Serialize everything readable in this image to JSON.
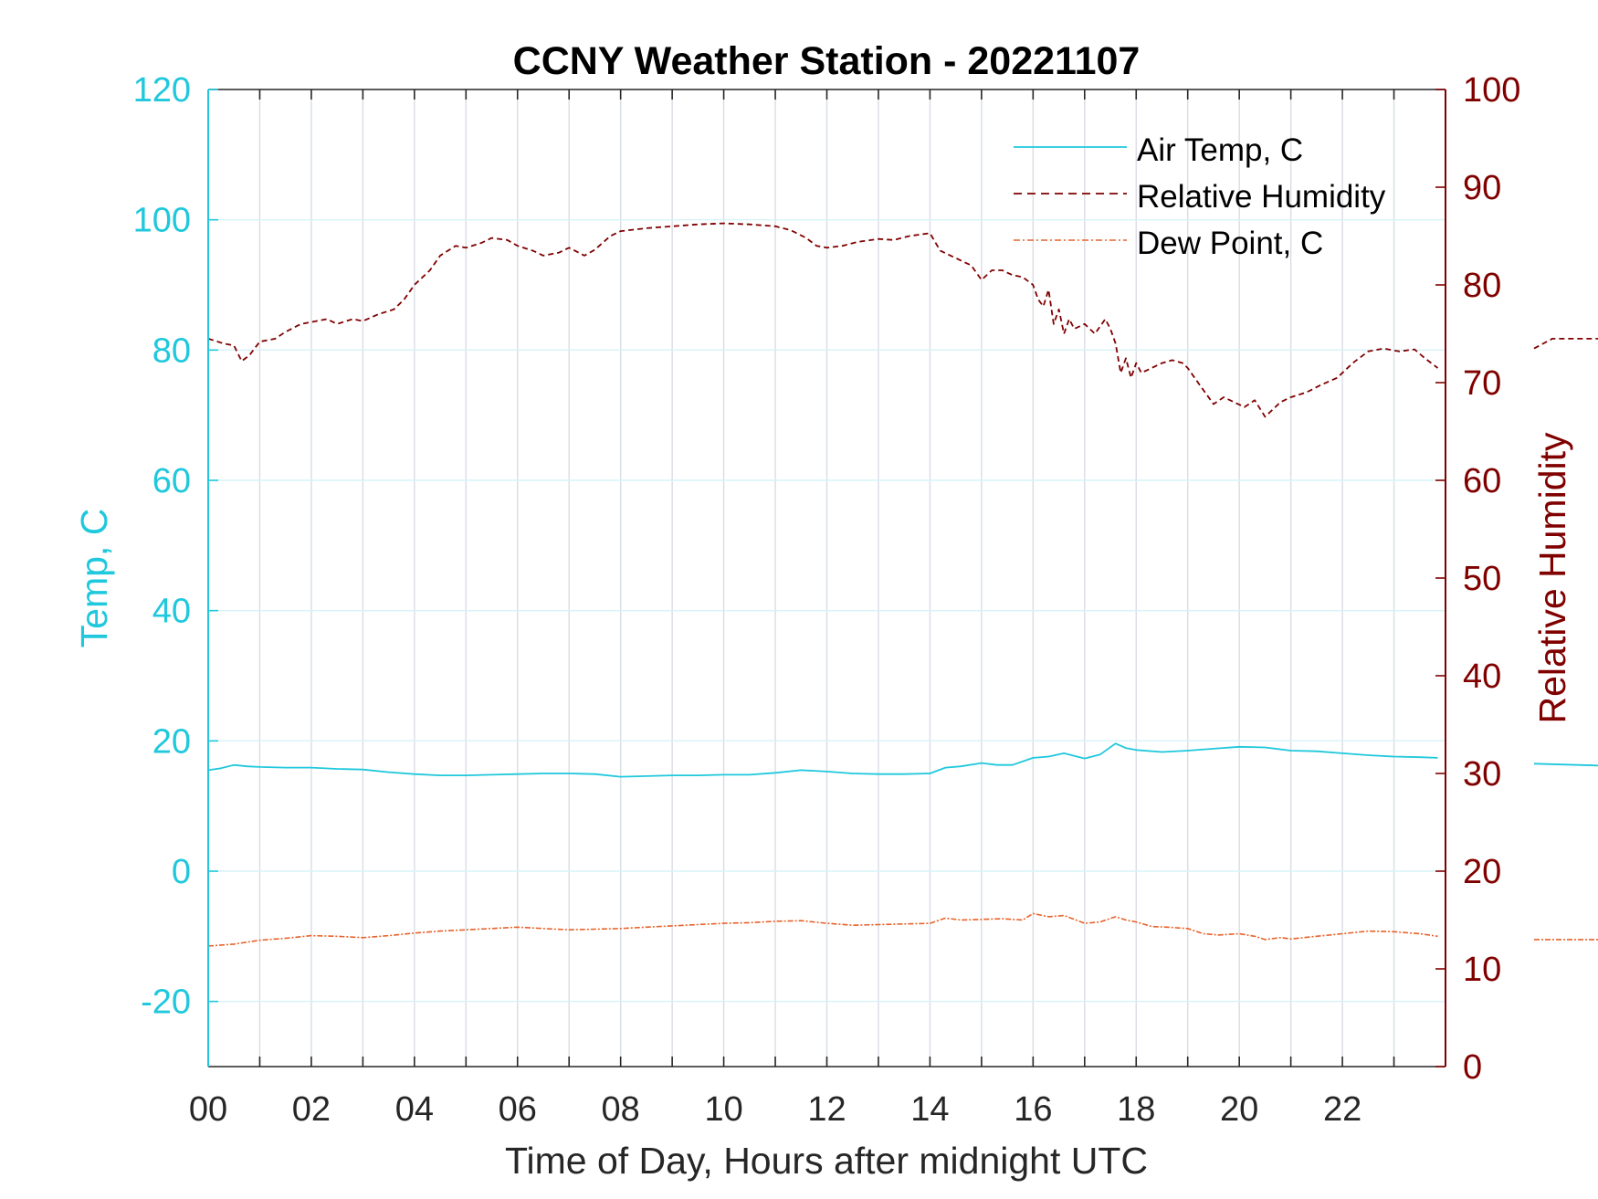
{
  "chart_data": {
    "type": "line",
    "title": "CCNY Weather Station - 20221107",
    "xlabel": "Time of Day, Hours after midnight UTC",
    "ylabel_left": "Temp, C",
    "ylabel_right": "Relative Humidity",
    "xlim": [
      0,
      24
    ],
    "ylim_left": [
      -30,
      120
    ],
    "ylim_right": [
      0,
      100
    ],
    "grid": true,
    "legend_position": "top-right",
    "x_tick_values": [
      0,
      2,
      4,
      6,
      8,
      10,
      12,
      14,
      16,
      18,
      20,
      22
    ],
    "x_tick_labels": [
      "00",
      "02",
      "04",
      "06",
      "08",
      "10",
      "12",
      "14",
      "16",
      "18",
      "20",
      "22"
    ],
    "y_left_ticks": [
      -20,
      0,
      20,
      40,
      60,
      80,
      100,
      120
    ],
    "y_left_tick_labels": [
      "-20",
      "0",
      "20",
      "40",
      "60",
      "80",
      "100",
      "120"
    ],
    "y_right_ticks": [
      0,
      10,
      20,
      30,
      40,
      50,
      60,
      70,
      80,
      90,
      100
    ],
    "y_right_tick_labels": [
      "0",
      "10",
      "20",
      "30",
      "40",
      "50",
      "60",
      "70",
      "80",
      "90",
      "100"
    ],
    "colors": {
      "left_axis": "#1FC8DC",
      "right_axis": "#800000",
      "air_temp": "#1FC8DC",
      "humidity": "#800000",
      "dew_point": "#E8622A",
      "grid": "#D8DDE4",
      "axis": "#262626"
    },
    "series": [
      {
        "name": "Air Temp, C",
        "axis": "left",
        "style": "solid",
        "x": [
          0,
          0.25,
          0.5,
          0.75,
          1,
          1.5,
          2,
          2.5,
          3,
          3.5,
          4,
          4.5,
          5,
          5.5,
          6,
          6.5,
          7,
          7.5,
          8,
          8.5,
          9,
          9.5,
          10,
          10.5,
          11,
          11.5,
          12,
          12.5,
          13,
          13.5,
          14,
          14.3,
          14.6,
          15,
          15.3,
          15.6,
          16,
          16.3,
          16.6,
          17,
          17.3,
          17.6,
          17.8,
          18,
          18.5,
          19,
          19.5,
          20,
          20.5,
          21,
          21.5,
          22,
          22.5,
          23,
          23.5,
          23.85
        ],
        "values": [
          15.5,
          15.8,
          16.3,
          16.1,
          16.0,
          15.9,
          15.9,
          15.7,
          15.6,
          15.2,
          14.9,
          14.7,
          14.7,
          14.8,
          14.9,
          15.0,
          15.0,
          14.9,
          14.5,
          14.6,
          14.7,
          14.7,
          14.8,
          14.8,
          15.1,
          15.5,
          15.3,
          15.0,
          14.9,
          14.9,
          15.0,
          15.9,
          16.1,
          16.6,
          16.3,
          16.3,
          17.4,
          17.6,
          18.1,
          17.3,
          17.9,
          19.6,
          18.9,
          18.6,
          18.3,
          18.5,
          18.8,
          19.1,
          19.0,
          18.5,
          18.4,
          18.1,
          17.8,
          17.6,
          17.5,
          17.4
        ]
      },
      {
        "name": "Relative Humidity",
        "axis": "right",
        "style": "dashed",
        "x": [
          0,
          0.3,
          0.5,
          0.65,
          0.8,
          1,
          1.3,
          1.5,
          1.8,
          2,
          2.3,
          2.5,
          2.8,
          3,
          3.3,
          3.6,
          3.8,
          4,
          4.3,
          4.5,
          4.8,
          5,
          5.3,
          5.5,
          5.8,
          6,
          6.3,
          6.5,
          6.8,
          7,
          7.3,
          7.5,
          7.8,
          8,
          8.5,
          9,
          9.5,
          10,
          10.5,
          11,
          11.3,
          11.6,
          11.8,
          12,
          12.3,
          12.6,
          13,
          13.3,
          13.6,
          14,
          14.2,
          14.4,
          14.6,
          14.8,
          15,
          15.2,
          15.4,
          15.6,
          15.8,
          16,
          16.1,
          16.2,
          16.3,
          16.4,
          16.5,
          16.6,
          16.7,
          16.8,
          17,
          17.2,
          17.4,
          17.5,
          17.6,
          17.7,
          17.8,
          17.9,
          18,
          18.1,
          18.3,
          18.5,
          18.7,
          18.9,
          19,
          19.2,
          19.5,
          19.7,
          19.9,
          20.1,
          20.3,
          20.5,
          20.6,
          20.8,
          21,
          21.3,
          21.6,
          21.9,
          22.2,
          22.5,
          22.8,
          23.1,
          23.4,
          23.6,
          23.85
        ],
        "values": [
          74.5,
          74.0,
          73.8,
          72.2,
          72.8,
          74.2,
          74.5,
          75.2,
          76.0,
          76.2,
          76.5,
          76.0,
          76.5,
          76.3,
          77.0,
          77.5,
          78.5,
          80.0,
          81.5,
          83.0,
          84.0,
          83.8,
          84.3,
          84.8,
          84.6,
          84.0,
          83.5,
          83.0,
          83.3,
          83.8,
          83.0,
          83.6,
          85.0,
          85.5,
          85.8,
          86.0,
          86.2,
          86.3,
          86.2,
          86.0,
          85.6,
          84.8,
          84.0,
          83.8,
          84.0,
          84.4,
          84.7,
          84.6,
          85.0,
          85.3,
          83.5,
          83.0,
          82.5,
          82.0,
          80.5,
          81.5,
          81.5,
          81.0,
          80.8,
          80.0,
          78.5,
          77.8,
          79.5,
          76.0,
          77.5,
          75.0,
          76.5,
          75.5,
          76.0,
          75.0,
          76.5,
          75.5,
          74.0,
          71.0,
          72.5,
          70.5,
          72.0,
          71.0,
          71.5,
          72.0,
          72.3,
          72.0,
          71.5,
          70.0,
          67.8,
          68.5,
          68.0,
          67.5,
          68.2,
          66.5,
          67.0,
          68.0,
          68.5,
          69.0,
          69.8,
          70.5,
          72.0,
          73.2,
          73.5,
          73.2,
          73.4,
          72.5,
          71.5
        ]
      },
      {
        "name": "Dew Point, C",
        "axis": "left",
        "style": "dash-dot",
        "x": [
          0,
          0.5,
          1,
          1.5,
          2,
          2.5,
          3,
          3.5,
          4,
          4.5,
          5,
          5.5,
          6,
          6.5,
          7,
          7.5,
          8,
          8.5,
          9,
          9.5,
          10,
          10.5,
          11,
          11.5,
          12,
          12.5,
          13,
          13.5,
          14,
          14.3,
          14.6,
          15,
          15.4,
          15.8,
          16,
          16.3,
          16.6,
          17,
          17.3,
          17.6,
          17.8,
          18,
          18.3,
          18.6,
          19,
          19.3,
          19.6,
          20,
          20.3,
          20.5,
          20.8,
          21,
          21.5,
          22,
          22.5,
          23,
          23.5,
          23.85
        ],
        "values": [
          -11.5,
          -11.2,
          -10.6,
          -10.3,
          -9.9,
          -10.0,
          -10.2,
          -9.9,
          -9.5,
          -9.2,
          -9.0,
          -8.8,
          -8.6,
          -8.8,
          -9.0,
          -8.9,
          -8.8,
          -8.6,
          -8.4,
          -8.2,
          -8.0,
          -7.9,
          -7.7,
          -7.6,
          -8.0,
          -8.3,
          -8.2,
          -8.1,
          -8.0,
          -7.2,
          -7.5,
          -7.4,
          -7.3,
          -7.5,
          -6.5,
          -7.0,
          -6.8,
          -8.0,
          -7.8,
          -7.0,
          -7.5,
          -7.8,
          -8.5,
          -8.6,
          -8.8,
          -9.6,
          -9.8,
          -9.6,
          -10.0,
          -10.5,
          -10.2,
          -10.4,
          -10.0,
          -9.6,
          -9.2,
          -9.3,
          -9.6,
          -10.0
        ]
      }
    ],
    "partial_series_right_edge": {
      "air_temp_value": 16.5,
      "humidity_value": 74.5,
      "dew_point_value": -10.5
    }
  }
}
